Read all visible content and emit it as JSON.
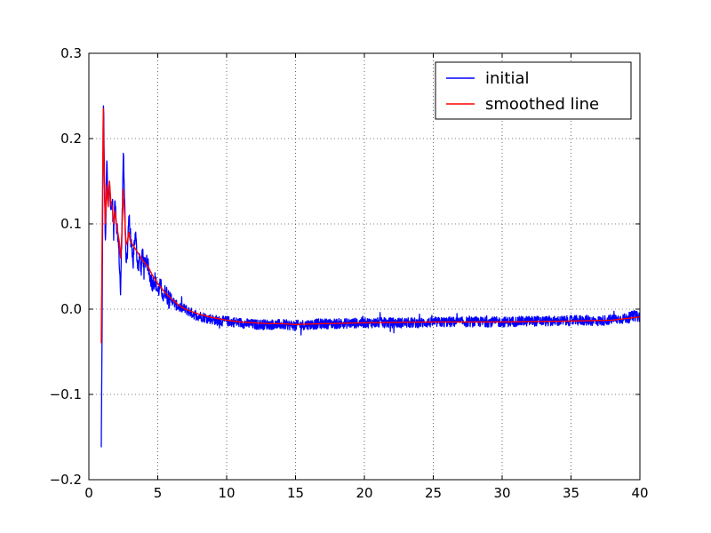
{
  "chart_data": {
    "type": "line",
    "title": "",
    "xlabel": "",
    "ylabel": "",
    "xlim": [
      0,
      40
    ],
    "ylim": [
      -0.2,
      0.3
    ],
    "xticks": [
      0,
      5,
      10,
      15,
      20,
      25,
      30,
      35,
      40
    ],
    "yticks": [
      -0.2,
      -0.1,
      0.0,
      0.1,
      0.2,
      0.3
    ],
    "xtick_labels": [
      "0",
      "5",
      "10",
      "15",
      "20",
      "25",
      "30",
      "35",
      "40"
    ],
    "ytick_labels": [
      "−0.2",
      "−0.1",
      "0.0",
      "0.1",
      "0.2",
      "0.3"
    ],
    "grid": true,
    "legend_position": "top-right",
    "series": [
      {
        "name": "initial",
        "color": "#0000ff",
        "noise": 0.006,
        "x": [
          0.9,
          0.95,
          1.0,
          1.05,
          1.1,
          1.15,
          1.2,
          1.3,
          1.4,
          1.5,
          1.6,
          1.7,
          1.8,
          1.9,
          2.0,
          2.1,
          2.2,
          2.3,
          2.4,
          2.5,
          2.6,
          2.7,
          2.8,
          2.9,
          3.0,
          3.1,
          3.2,
          3.3,
          3.4,
          3.5,
          3.6,
          3.7,
          3.8,
          3.9,
          4.0,
          4.2,
          4.4,
          4.6,
          4.8,
          5.0,
          5.2,
          5.4,
          5.6,
          5.8,
          6.0,
          6.3,
          6.6,
          7.0,
          7.5,
          8.0,
          8.5,
          9.0,
          9.5,
          10,
          11,
          12,
          13,
          14,
          15,
          16,
          17,
          18,
          20,
          22,
          24,
          26,
          28,
          30,
          32,
          34,
          36,
          37,
          38,
          39,
          39.5,
          40
        ],
        "y": [
          -0.165,
          -0.05,
          0.1,
          0.255,
          0.2,
          0.12,
          0.075,
          0.175,
          0.12,
          0.155,
          0.11,
          0.13,
          0.085,
          0.135,
          0.1,
          0.09,
          0.06,
          0.02,
          0.09,
          0.19,
          0.12,
          0.05,
          0.07,
          0.11,
          0.09,
          0.07,
          0.05,
          0.08,
          0.085,
          0.06,
          0.05,
          0.065,
          0.045,
          0.07,
          0.05,
          0.06,
          0.04,
          0.03,
          0.035,
          0.02,
          0.028,
          0.015,
          0.022,
          0.01,
          0.012,
          0.005,
          0.002,
          0.0,
          -0.005,
          -0.008,
          -0.01,
          -0.012,
          -0.014,
          -0.014,
          -0.016,
          -0.018,
          -0.018,
          -0.018,
          -0.019,
          -0.018,
          -0.017,
          -0.017,
          -0.016,
          -0.016,
          -0.016,
          -0.015,
          -0.015,
          -0.015,
          -0.014,
          -0.014,
          -0.013,
          -0.014,
          -0.012,
          -0.011,
          -0.008,
          -0.009
        ]
      },
      {
        "name": "smoothed line",
        "color": "#ff0000",
        "noise": 0.0,
        "x": [
          0.9,
          1.0,
          1.05,
          1.1,
          1.2,
          1.3,
          1.4,
          1.5,
          1.6,
          1.7,
          1.8,
          1.9,
          2.0,
          2.1,
          2.2,
          2.3,
          2.4,
          2.5,
          2.6,
          2.7,
          2.8,
          2.9,
          3.0,
          3.2,
          3.4,
          3.6,
          3.8,
          4.0,
          4.3,
          4.6,
          5.0,
          5.5,
          6.0,
          6.5,
          7.0,
          7.5,
          8.0,
          8.5,
          9.0,
          10,
          11,
          12,
          13,
          14,
          15,
          17,
          20,
          25,
          30,
          35,
          38,
          39,
          40
        ],
        "y": [
          -0.04,
          0.15,
          0.235,
          0.17,
          0.1,
          0.145,
          0.12,
          0.15,
          0.125,
          0.12,
          0.1,
          0.115,
          0.1,
          0.09,
          0.08,
          0.06,
          0.09,
          0.14,
          0.11,
          0.075,
          0.08,
          0.09,
          0.08,
          0.075,
          0.07,
          0.065,
          0.06,
          0.055,
          0.05,
          0.04,
          0.03,
          0.02,
          0.012,
          0.005,
          0.0,
          -0.003,
          -0.006,
          -0.008,
          -0.01,
          -0.013,
          -0.015,
          -0.016,
          -0.017,
          -0.017,
          -0.018,
          -0.017,
          -0.016,
          -0.015,
          -0.015,
          -0.014,
          -0.013,
          -0.011,
          -0.009
        ]
      }
    ]
  }
}
